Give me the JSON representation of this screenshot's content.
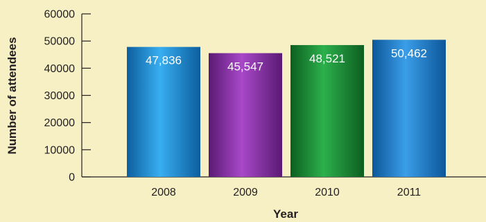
{
  "chart_data": {
    "type": "bar",
    "title": "",
    "xlabel": "Year",
    "ylabel": "Number of attendees",
    "categories": [
      "2008",
      "2009",
      "2010",
      "2011"
    ],
    "values": [
      47836,
      45547,
      48521,
      50462
    ],
    "data_labels": [
      "47,836",
      "45,547",
      "48,521",
      "50,462"
    ],
    "ylim": [
      0,
      60000
    ],
    "yticks": [
      "0",
      "10000",
      "20000",
      "30000",
      "40000",
      "50000",
      "60000"
    ],
    "grid": false,
    "legend": "none",
    "bar_colors": [
      "#1e8fd8",
      "#8a2da8",
      "#1a9a3a",
      "#1e7fd0"
    ]
  }
}
